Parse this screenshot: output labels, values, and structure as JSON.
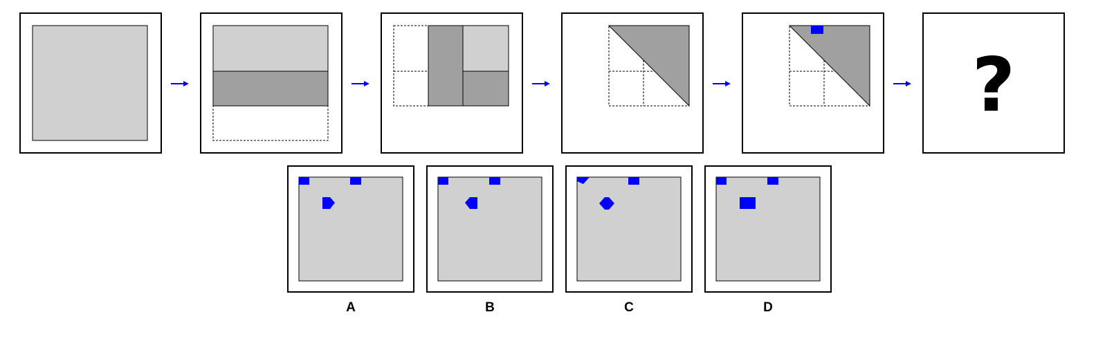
{
  "puzzle": {
    "sequence_steps": [
      {
        "id": 1,
        "content": "full-sheet"
      },
      {
        "id": 2,
        "content": "fold-bottom-up"
      },
      {
        "id": 3,
        "content": "fold-left-over"
      },
      {
        "id": 4,
        "content": "fold-diagonal"
      },
      {
        "id": 5,
        "content": "punch-hole"
      },
      {
        "id": 6,
        "content": "question"
      }
    ],
    "question_mark": "?",
    "options": [
      {
        "label": "A"
      },
      {
        "label": "B"
      },
      {
        "label": "C"
      },
      {
        "label": "D"
      }
    ]
  },
  "colors": {
    "paper": "#d0d0d0",
    "folded": "#a0a0a0",
    "hole": "#0000ff",
    "arrow": "#0000ff",
    "frame": "#000000",
    "background": "#ffffff"
  }
}
